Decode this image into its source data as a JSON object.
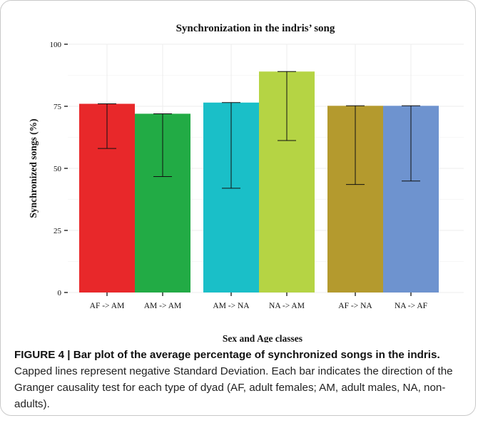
{
  "chart_data": {
    "type": "bar",
    "title": "Synchronization in the indris’ song",
    "xlabel": "Sex and Age classes",
    "ylabel": "Synchronized songs (%)",
    "ylim": [
      0,
      100
    ],
    "yticks": [
      0,
      25,
      50,
      75,
      100
    ],
    "grid": true,
    "categories": [
      "AF -> AM",
      "AM -> AM",
      "AM -> NA",
      "NA -> AM",
      "AF -> NA",
      "NA -> AF"
    ],
    "values": [
      76,
      72,
      76.5,
      89,
      75.2,
      75.2
    ],
    "error_bars_negative_sd": [
      18,
      25.3,
      34.5,
      27.8,
      31.7,
      30.3
    ],
    "groups": [
      [
        "AF -> AM",
        "AM -> AM"
      ],
      [
        "AM -> NA",
        "NA -> AM"
      ],
      [
        "AF -> NA",
        "NA -> AF"
      ]
    ],
    "colors": [
      "#e8282a",
      "#22ab45",
      "#1abfc8",
      "#b5d444",
      "#b49a2e",
      "#6e93cf"
    ]
  },
  "caption": {
    "label": "FIGURE 4 | Bar plot of the average percentage of synchronized songs in the indris.",
    "text": " Capped lines represent negative Standard Deviation. Each bar indicates the direction of the Granger causality test for each type of dyad (AF, adult females; AM, adult males, NA, non-adults)."
  }
}
